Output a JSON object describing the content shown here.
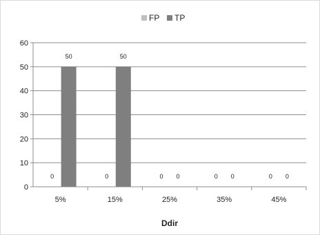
{
  "chart_data": {
    "type": "bar",
    "title": "",
    "xlabel": "Ddir",
    "ylabel": "",
    "categories": [
      "5%",
      "15%",
      "25%",
      "35%",
      "45%"
    ],
    "series": [
      {
        "name": "FP",
        "values": [
          0,
          0,
          0,
          0,
          0
        ],
        "color": "#bfbfbf"
      },
      {
        "name": "TP",
        "values": [
          50,
          50,
          0,
          0,
          0
        ],
        "color": "#7f7f7f"
      }
    ],
    "ylim": [
      0,
      60
    ],
    "yticks": [
      0,
      10,
      20,
      30,
      40,
      50,
      60
    ],
    "grid": true,
    "legend_position": "top"
  }
}
